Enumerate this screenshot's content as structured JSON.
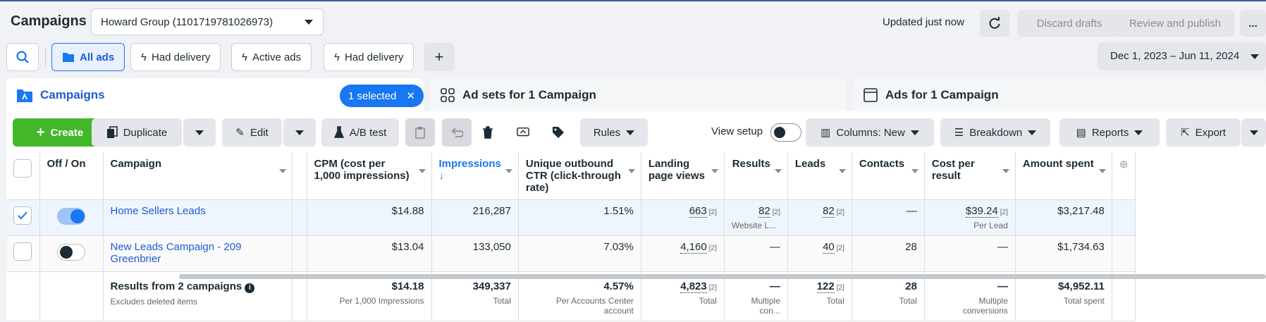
{
  "header": {
    "title": "Campaigns",
    "account": "Howard Group (1101719781026973)",
    "updated": "Updated just now",
    "discard_label": "Discard drafts",
    "publish_label": "Review and publish",
    "more_label": "..."
  },
  "filters": {
    "chips": [
      "All ads",
      "Had delivery",
      "Active ads",
      "Had delivery"
    ],
    "add_label": "+",
    "date_range": "Dec 1, 2023 – Jun 11, 2024"
  },
  "tabs": {
    "campaigns": "Campaigns",
    "selected": "1 selected",
    "adsets": "Ad sets for 1 Campaign",
    "ads": "Ads for 1 Campaign"
  },
  "toolbar": {
    "create": "Create",
    "duplicate": "Duplicate",
    "edit": "Edit",
    "ab_test": "A/B test",
    "rules": "Rules",
    "view_setup": "View setup",
    "columns": "Columns: New",
    "breakdown": "Breakdown",
    "reports": "Reports",
    "export": "Export"
  },
  "table": {
    "headers": {
      "offon": "Off / On",
      "campaign": "Campaign",
      "cpm": "CPM (cost per 1,000 impressions)",
      "impressions": "Impressions",
      "impressions_sort": "↓",
      "ctr": "Unique outbound CTR (click-through rate)",
      "lpv": "Landing page views",
      "results": "Results",
      "leads": "Leads",
      "contacts": "Contacts",
      "cpr": "Cost per result",
      "spent": "Amount spent"
    },
    "rows": [
      {
        "checked": true,
        "on": true,
        "campaign": "Home Sellers Leads",
        "cpm": "$14.88",
        "impressions": "216,287",
        "ctr": "1.51%",
        "lpv": "663",
        "lpv_sup": "[2]",
        "results": "82",
        "results_sup": "[2]",
        "results_sub": "Website L...",
        "leads": "82",
        "leads_sup": "[2]",
        "contacts": "—",
        "cpr": "$39.24",
        "cpr_sup": "[2]",
        "cpr_sub": "Per Lead",
        "spent": "$3,217.48"
      },
      {
        "checked": false,
        "on": false,
        "campaign": "New Leads Campaign - 209 Greenbrier",
        "cpm": "$13.04",
        "impressions": "133,050",
        "ctr": "7.03%",
        "lpv": "4,160",
        "lpv_sup": "[2]",
        "results": "—",
        "leads": "40",
        "leads_sup": "[2]",
        "contacts": "28",
        "cpr": "—",
        "spent": "$1,734.63"
      }
    ],
    "totals": {
      "label": "Results from 2 campaigns",
      "sublabel": "Excludes deleted items",
      "cpm": "$14.18",
      "cpm_sub": "Per 1,000 Impressions",
      "impressions": "349,337",
      "impressions_sub": "Total",
      "ctr": "4.57%",
      "ctr_sub": "Per Accounts Center account",
      "lpv": "4,823",
      "lpv_sup": "[2]",
      "lpv_sub": "Total",
      "results": "—",
      "results_sub": "Multiple con...",
      "leads": "122",
      "leads_sup": "[2]",
      "leads_sub": "Total",
      "contacts": "28",
      "contacts_sub": "Total",
      "cpr": "—",
      "cpr_sub": "Multiple conversions",
      "spent": "$4,952.11",
      "spent_sub": "Total spent"
    }
  },
  "colors": {
    "accent": "#1877f2",
    "create": "#42b72a",
    "link": "#1e5bd6"
  }
}
